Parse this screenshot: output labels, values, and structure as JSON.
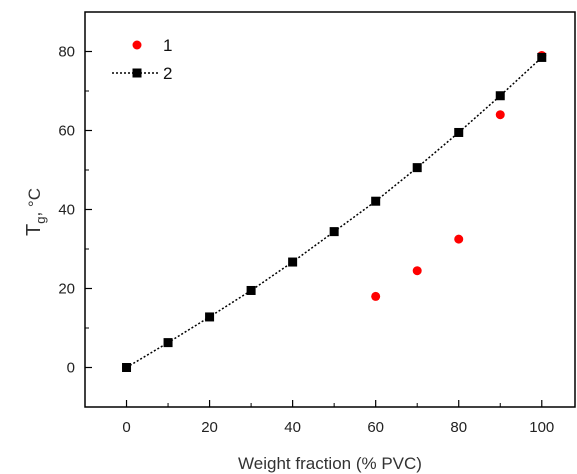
{
  "chart_data": {
    "type": "scatter",
    "xlabel": "Weight fraction (% PVC)",
    "ylabel_main": "T",
    "ylabel_sub": "g",
    "ylabel_rest": ", °C",
    "xlim": [
      -10,
      108
    ],
    "ylim": [
      -10,
      90
    ],
    "x_ticks": [
      0,
      20,
      40,
      60,
      80,
      100
    ],
    "y_ticks": [
      0,
      20,
      40,
      60,
      80
    ],
    "legend_position": "top-left",
    "series": [
      {
        "name": "1",
        "style": "markers",
        "marker": "circle",
        "color": "#ff0000",
        "x": [
          0,
          60,
          70,
          80,
          90,
          100
        ],
        "y": [
          0,
          18,
          24.5,
          32.5,
          64,
          79
        ]
      },
      {
        "name": "2",
        "style": "dotted-line-markers",
        "marker": "square",
        "color": "#000000",
        "x": [
          0,
          10,
          20,
          30,
          40,
          50,
          60,
          70,
          80,
          90,
          100
        ],
        "y": [
          0,
          6.3,
          12.8,
          19.5,
          26.7,
          34.4,
          42.1,
          50.6,
          59.5,
          68.8,
          78.5
        ]
      }
    ]
  }
}
